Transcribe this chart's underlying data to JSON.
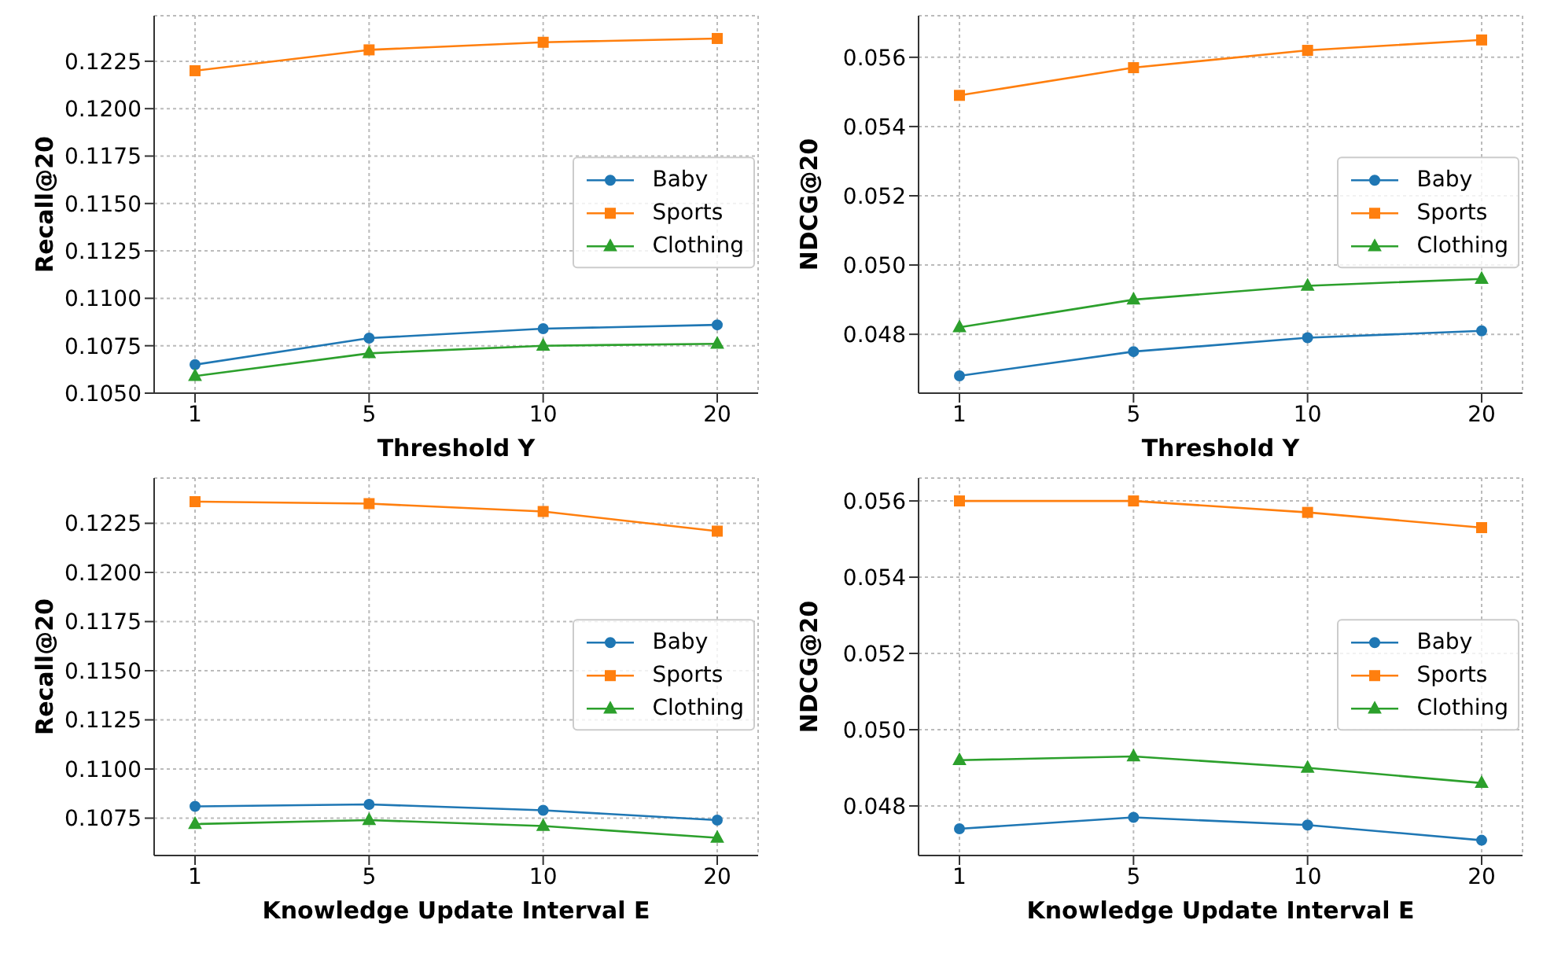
{
  "chart_data": [
    {
      "type": "line",
      "xlabel": "Threshold Y",
      "ylabel": "Recall@20",
      "categories": [
        "1",
        "5",
        "10",
        "20"
      ],
      "ylim": [
        0.105,
        0.1249
      ],
      "yticks": [
        {
          "value": 0.105,
          "label": "0.1050"
        },
        {
          "value": 0.1075,
          "label": "0.1075"
        },
        {
          "value": 0.11,
          "label": "0.1100"
        },
        {
          "value": 0.1125,
          "label": "0.1125"
        },
        {
          "value": 0.115,
          "label": "0.1150"
        },
        {
          "value": 0.1175,
          "label": "0.1175"
        },
        {
          "value": 0.12,
          "label": "0.1200"
        },
        {
          "value": 0.1225,
          "label": "0.1225"
        }
      ],
      "grid": true,
      "legend": "right",
      "series": [
        {
          "name": "Baby",
          "color": "#1f77b4",
          "marker": "circle",
          "values": [
            0.1065,
            0.1079,
            0.1084,
            0.1086
          ]
        },
        {
          "name": "Sports",
          "color": "#ff7f0e",
          "marker": "square",
          "values": [
            0.122,
            0.1231,
            0.1235,
            0.1237
          ]
        },
        {
          "name": "Clothing",
          "color": "#2ca02c",
          "marker": "triangle",
          "values": [
            0.1059,
            0.1071,
            0.1075,
            0.1076
          ]
        }
      ]
    },
    {
      "type": "line",
      "xlabel": "Threshold Y",
      "ylabel": "NDCG@20",
      "categories": [
        "1",
        "5",
        "10",
        "20"
      ],
      "ylim": [
        0.0463,
        0.0572
      ],
      "yticks": [
        0.048,
        {
          "value": 0.05,
          "label": "0.050"
        },
        0.052,
        0.054,
        0.056
      ],
      "grid": true,
      "legend": "right",
      "series": [
        {
          "name": "Baby",
          "color": "#1f77b4",
          "marker": "circle",
          "values": [
            0.0468,
            0.0475,
            0.0479,
            0.0481
          ]
        },
        {
          "name": "Sports",
          "color": "#ff7f0e",
          "marker": "square",
          "values": [
            0.0549,
            0.0557,
            0.0562,
            0.0565
          ]
        },
        {
          "name": "Clothing",
          "color": "#2ca02c",
          "marker": "triangle",
          "values": [
            0.0482,
            0.049,
            0.0494,
            0.0496
          ]
        }
      ]
    },
    {
      "type": "line",
      "xlabel": "Knowledge Update Interval E",
      "ylabel": "Recall@20",
      "categories": [
        "1",
        "5",
        "10",
        "20"
      ],
      "ylim": [
        0.1056,
        0.1248
      ],
      "yticks": [
        {
          "value": 0.1075,
          "label": "0.1075"
        },
        {
          "value": 0.11,
          "label": "0.1100"
        },
        {
          "value": 0.1125,
          "label": "0.1125"
        },
        {
          "value": 0.115,
          "label": "0.1150"
        },
        {
          "value": 0.1175,
          "label": "0.1175"
        },
        {
          "value": 0.12,
          "label": "0.1200"
        },
        {
          "value": 0.1225,
          "label": "0.1225"
        }
      ],
      "grid": true,
      "legend": "right",
      "series": [
        {
          "name": "Baby",
          "color": "#1f77b4",
          "marker": "circle",
          "values": [
            0.1081,
            0.1082,
            0.1079,
            0.1074
          ]
        },
        {
          "name": "Sports",
          "color": "#ff7f0e",
          "marker": "square",
          "values": [
            0.1236,
            0.1235,
            0.1231,
            0.1221
          ]
        },
        {
          "name": "Clothing",
          "color": "#2ca02c",
          "marker": "triangle",
          "values": [
            0.1072,
            0.1074,
            0.1071,
            0.1065
          ]
        }
      ]
    },
    {
      "type": "line",
      "xlabel": "Knowledge Update Interval E",
      "ylabel": "NDCG@20",
      "categories": [
        "1",
        "5",
        "10",
        "20"
      ],
      "ylim": [
        0.0467,
        0.0566
      ],
      "yticks": [
        0.048,
        {
          "value": 0.05,
          "label": "0.050"
        },
        0.052,
        0.054,
        0.056
      ],
      "grid": true,
      "legend": "right",
      "series": [
        {
          "name": "Baby",
          "color": "#1f77b4",
          "marker": "circle",
          "values": [
            0.0474,
            0.0477,
            0.0475,
            0.0471
          ]
        },
        {
          "name": "Sports",
          "color": "#ff7f0e",
          "marker": "square",
          "values": [
            0.056,
            0.056,
            0.0557,
            0.0553
          ]
        },
        {
          "name": "Clothing",
          "color": "#2ca02c",
          "marker": "triangle",
          "values": [
            0.0492,
            0.0493,
            0.049,
            0.0486
          ]
        }
      ]
    }
  ]
}
